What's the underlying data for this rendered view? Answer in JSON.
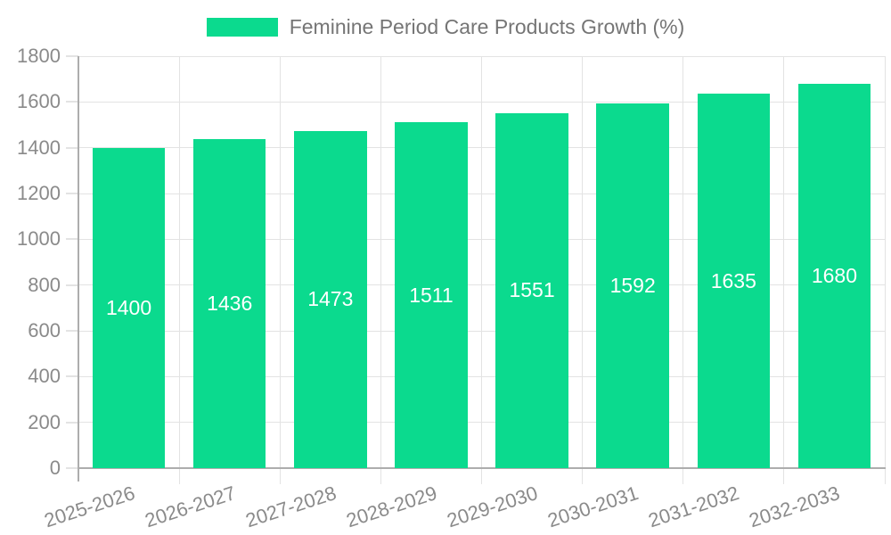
{
  "legend": {
    "label": "Feminine Period Care Products Growth (%)"
  },
  "chart_data": {
    "type": "bar",
    "title": "Feminine Period Care Products Growth (%)",
    "series_name": "Feminine Period Care Products Growth (%)",
    "categories": [
      "2025-2026",
      "2026-2027",
      "2027-2028",
      "2028-2029",
      "2029-2030",
      "2030-2031",
      "2031-2032",
      "2032-2033"
    ],
    "values": [
      1400,
      1436,
      1473,
      1511,
      1551,
      1592,
      1635,
      1680
    ],
    "value_labels": [
      "1400",
      "1436",
      "1473",
      "1511",
      "1551",
      "1592",
      "1635",
      "1680"
    ],
    "y_tick_labels": [
      "0",
      "200",
      "400",
      "600",
      "800",
      "1000",
      "1200",
      "1400",
      "1600",
      "1800"
    ],
    "xlabel": "",
    "ylabel": "",
    "ylim": [
      0,
      1800
    ],
    "ytick_step": 200,
    "grid": true,
    "legend_position": "top-center",
    "x_tick_rotation_deg": -18,
    "colors": {
      "bar": "#0BDA8E",
      "value_label": "#FFFFFF",
      "grid": "#E3E3E3",
      "axis_line": "#ADADAD",
      "tick_text": "#8A8A8A",
      "legend_text": "#757575",
      "background": "#FFFFFF"
    }
  }
}
